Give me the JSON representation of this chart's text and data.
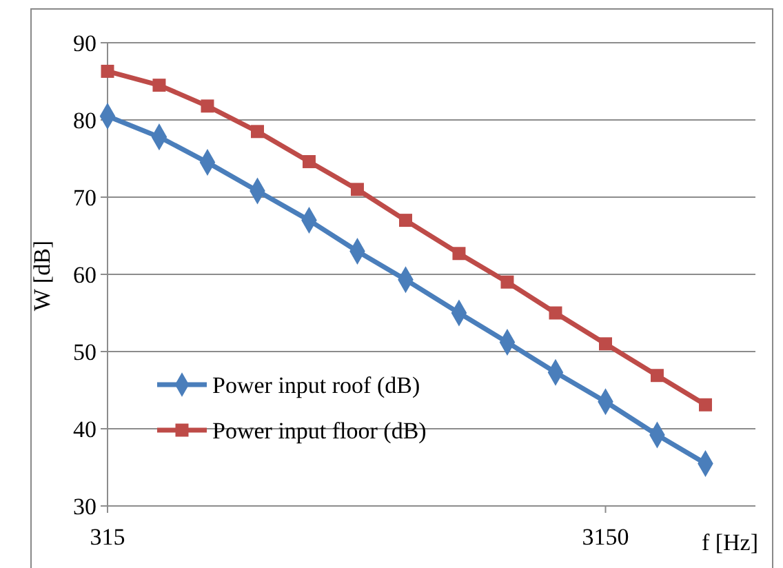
{
  "chart_data": {
    "type": "line",
    "xlabel": "f [Hz]",
    "ylabel": "W [dB]",
    "x": [
      315,
      400,
      500,
      630,
      800,
      1000,
      1250,
      1600,
      2000,
      2500,
      3150,
      4000,
      5000
    ],
    "series": [
      {
        "name": "Power input  roof (dB)",
        "color": "#4a7ebb",
        "marker": "diamond",
        "values": [
          80.5,
          77.8,
          74.5,
          70.8,
          67.0,
          63.0,
          59.3,
          55.0,
          51.2,
          47.3,
          43.5,
          39.2,
          35.5
        ]
      },
      {
        "name": "Power input floor (dB)",
        "color": "#be4b48",
        "marker": "square",
        "values": [
          86.3,
          84.5,
          81.8,
          78.5,
          74.6,
          71.0,
          67.0,
          62.7,
          59.0,
          55.0,
          51.0,
          46.9,
          43.1
        ]
      }
    ],
    "log": "x",
    "xlim": [
      315,
      6300
    ],
    "xticks": [
      315,
      3150
    ],
    "ylim": [
      30,
      90
    ],
    "yticks": [
      30,
      40,
      50,
      60,
      70,
      80,
      90
    ],
    "grid": "y",
    "legend": "bottom left",
    "line_style": "solid"
  }
}
